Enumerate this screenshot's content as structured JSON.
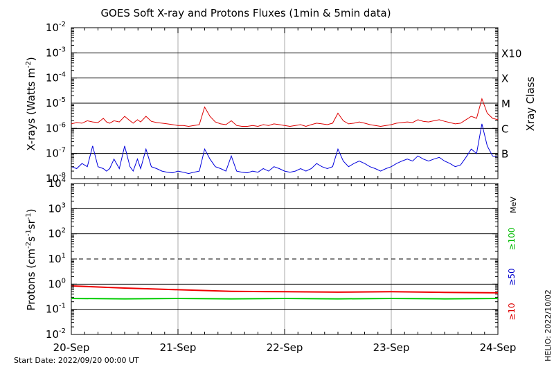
{
  "chart_data": [
    {
      "type": "line",
      "panel": "xray",
      "title": "GOES Soft X-ray and Protons Fluxes   (1min & 5min data)",
      "ylabel_text": "X-rays (Watts m",
      "ylabel_sup": "-2",
      "ylabel_close": ")",
      "yscale": "log",
      "ylim": [
        1e-08,
        0.01
      ],
      "ytick_exponents": [
        "-8",
        "-7",
        "-6",
        "-5",
        "-4",
        "-3",
        "-2"
      ],
      "xlim_days": [
        0,
        4
      ],
      "xtick_labels": [
        "20-Sep",
        "21-Sep",
        "22-Sep",
        "23-Sep",
        "24-Sep"
      ],
      "class_axis_label": "Xray Class",
      "class_labels": [
        {
          "label": "B",
          "flux": 1e-07
        },
        {
          "label": "C",
          "flux": 1e-06
        },
        {
          "label": "M",
          "flux": 1e-05
        },
        {
          "label": "X",
          "flux": 0.0001
        },
        {
          "label": "X10",
          "flux": 0.001
        }
      ],
      "series": [
        {
          "color": "#dd0000",
          "x": [
            0,
            0.05,
            0.1,
            0.15,
            0.2,
            0.25,
            0.3,
            0.33,
            0.36,
            0.4,
            0.45,
            0.5,
            0.55,
            0.58,
            0.62,
            0.65,
            0.7,
            0.75,
            0.8,
            0.85,
            0.9,
            0.95,
            1.0,
            1.05,
            1.1,
            1.15,
            1.2,
            1.25,
            1.3,
            1.35,
            1.4,
            1.45,
            1.5,
            1.55,
            1.6,
            1.65,
            1.7,
            1.75,
            1.8,
            1.85,
            1.9,
            1.95,
            2.0,
            2.05,
            2.1,
            2.15,
            2.2,
            2.25,
            2.3,
            2.35,
            2.4,
            2.45,
            2.5,
            2.55,
            2.6,
            2.65,
            2.7,
            2.75,
            2.8,
            2.85,
            2.9,
            2.95,
            3.0,
            3.05,
            3.1,
            3.15,
            3.2,
            3.25,
            3.3,
            3.35,
            3.4,
            3.45,
            3.5,
            3.55,
            3.6,
            3.65,
            3.7,
            3.75,
            3.8,
            3.85,
            3.9,
            3.95,
            4.0
          ],
          "y": [
            1.5e-06,
            1.7e-06,
            1.6e-06,
            2e-06,
            1.8e-06,
            1.7e-06,
            2.5e-06,
            1.8e-06,
            1.6e-06,
            2e-06,
            1.8e-06,
            3e-06,
            2e-06,
            1.6e-06,
            2.2e-06,
            1.8e-06,
            3e-06,
            1.9e-06,
            1.7e-06,
            1.6e-06,
            1.5e-06,
            1.4e-06,
            1.3e-06,
            1.3e-06,
            1.2e-06,
            1.3e-06,
            1.4e-06,
            7e-06,
            3e-06,
            1.8e-06,
            1.5e-06,
            1.4e-06,
            2e-06,
            1.3e-06,
            1.2e-06,
            1.2e-06,
            1.3e-06,
            1.2e-06,
            1.4e-06,
            1.3e-06,
            1.5e-06,
            1.4e-06,
            1.3e-06,
            1.2e-06,
            1.3e-06,
            1.4e-06,
            1.2e-06,
            1.4e-06,
            1.6e-06,
            1.5e-06,
            1.4e-06,
            1.6e-06,
            4e-06,
            2e-06,
            1.5e-06,
            1.6e-06,
            1.8e-06,
            1.6e-06,
            1.4e-06,
            1.3e-06,
            1.2e-06,
            1.3e-06,
            1.4e-06,
            1.6e-06,
            1.7e-06,
            1.8e-06,
            1.7e-06,
            2.2e-06,
            1.9e-06,
            1.8e-06,
            2e-06,
            2.2e-06,
            1.9e-06,
            1.7e-06,
            1.5e-06,
            1.6e-06,
            2.2e-06,
            3e-06,
            2.5e-06,
            1.5e-05,
            4e-06,
            2.5e-06,
            2.2e-06
          ]
        },
        {
          "color": "#0000dd",
          "x": [
            0,
            0.05,
            0.1,
            0.15,
            0.2,
            0.25,
            0.3,
            0.33,
            0.36,
            0.4,
            0.45,
            0.5,
            0.55,
            0.58,
            0.62,
            0.65,
            0.7,
            0.75,
            0.8,
            0.85,
            0.9,
            0.95,
            1.0,
            1.05,
            1.1,
            1.15,
            1.2,
            1.25,
            1.3,
            1.35,
            1.4,
            1.45,
            1.5,
            1.55,
            1.6,
            1.65,
            1.7,
            1.75,
            1.8,
            1.85,
            1.9,
            1.95,
            2.0,
            2.05,
            2.1,
            2.15,
            2.2,
            2.25,
            2.3,
            2.35,
            2.4,
            2.45,
            2.5,
            2.55,
            2.6,
            2.65,
            2.7,
            2.75,
            2.8,
            2.85,
            2.9,
            2.95,
            3.0,
            3.05,
            3.1,
            3.15,
            3.2,
            3.25,
            3.3,
            3.35,
            3.4,
            3.45,
            3.5,
            3.55,
            3.6,
            3.65,
            3.7,
            3.75,
            3.8,
            3.85,
            3.9,
            3.95,
            4.0
          ],
          "y": [
            3e-08,
            2.5e-08,
            4e-08,
            3e-08,
            2e-07,
            3e-08,
            2.5e-08,
            2e-08,
            2.5e-08,
            6e-08,
            2.5e-08,
            2e-07,
            3e-08,
            2e-08,
            6e-08,
            2.5e-08,
            1.5e-07,
            3e-08,
            2.5e-08,
            2e-08,
            1.8e-08,
            1.7e-08,
            2e-08,
            1.8e-08,
            1.6e-08,
            1.8e-08,
            2e-08,
            1.5e-07,
            6e-08,
            3e-08,
            2.5e-08,
            2e-08,
            8e-08,
            2e-08,
            1.8e-08,
            1.7e-08,
            2e-08,
            1.8e-08,
            2.5e-08,
            2e-08,
            3e-08,
            2.5e-08,
            2e-08,
            1.8e-08,
            2e-08,
            2.5e-08,
            2e-08,
            2.5e-08,
            4e-08,
            3e-08,
            2.5e-08,
            3e-08,
            1.5e-07,
            5e-08,
            3e-08,
            4e-08,
            5e-08,
            4e-08,
            3e-08,
            2.5e-08,
            2e-08,
            2.5e-08,
            3e-08,
            4e-08,
            5e-08,
            6e-08,
            5e-08,
            8e-08,
            6e-08,
            5e-08,
            6e-08,
            7e-08,
            5e-08,
            4e-08,
            3e-08,
            3.5e-08,
            7e-08,
            1.5e-07,
            1e-07,
            1.5e-06,
            2e-07,
            8e-08,
            7e-08
          ]
        }
      ]
    },
    {
      "type": "line",
      "panel": "protons",
      "ylabel_text": "Protons (cm",
      "ylabel_sup1": "-2",
      "ylabel_mid1": "s",
      "ylabel_sup2": "-1",
      "ylabel_mid2": "sr",
      "ylabel_sup3": "-1",
      "ylabel_close": ")",
      "yscale": "log",
      "ylim": [
        0.01,
        10000
      ],
      "ytick_exponents": [
        "-2",
        "-1",
        "0",
        "1",
        "2",
        "3",
        "4"
      ],
      "xlim_days": [
        0,
        4
      ],
      "threshold": 10,
      "energy_unit": "MeV",
      "channel_labels": [
        {
          "label": "≥10",
          "color": "#dd0000"
        },
        {
          "label": "≥50",
          "color": "#0000cc"
        },
        {
          "label": "≥100",
          "color": "#00bb00"
        }
      ],
      "series": [
        {
          "name": "≥10",
          "color": "#ee0000",
          "x": [
            0,
            0.5,
            1,
            1.5,
            2,
            2.5,
            3,
            3.5,
            4
          ],
          "y": [
            0.85,
            0.7,
            0.6,
            0.52,
            0.5,
            0.48,
            0.5,
            0.47,
            0.45
          ]
        },
        {
          "name": "≥100",
          "color": "#00cc00",
          "x": [
            0,
            0.5,
            1,
            1.5,
            2,
            2.5,
            3,
            3.5,
            4
          ],
          "y": [
            0.27,
            0.26,
            0.27,
            0.26,
            0.27,
            0.26,
            0.27,
            0.26,
            0.27
          ]
        }
      ]
    }
  ],
  "footer": {
    "start_date": "Start Date: 2022/09/20 00:00 UT",
    "credit": "HELIO: 2022/10/02"
  }
}
